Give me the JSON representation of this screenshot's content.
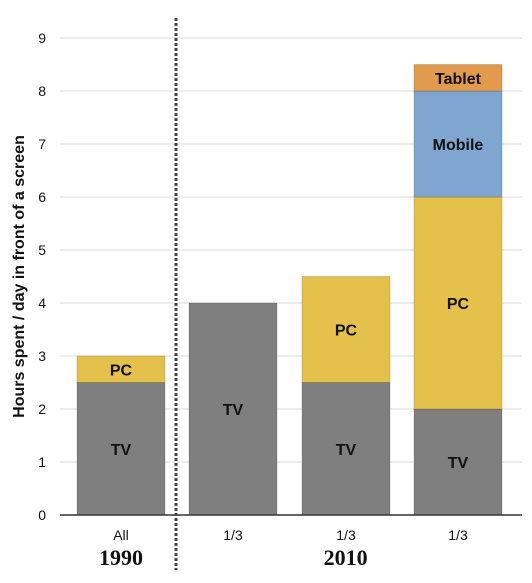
{
  "chart_data": {
    "type": "bar",
    "stacked": true,
    "ylabel": "Hours spent / day in front of a screen",
    "ylim": [
      0,
      9
    ],
    "yticks": [
      0,
      1,
      2,
      3,
      4,
      5,
      6,
      7,
      8,
      9
    ],
    "grid": true,
    "categories": [
      "All",
      "1/3",
      "1/3",
      "1/3"
    ],
    "groups": [
      {
        "label": "1990",
        "categories": [
          0
        ]
      },
      {
        "label": "2010",
        "categories": [
          1,
          2,
          3
        ]
      }
    ],
    "series": [
      {
        "name": "TV",
        "color": "#7f7f7f",
        "values": [
          2.5,
          4.0,
          2.5,
          2.0
        ]
      },
      {
        "name": "PC",
        "color": "#e3c14a",
        "values": [
          0.5,
          0,
          2.0,
          4.0
        ]
      },
      {
        "name": "Mobile",
        "color": "#7ea6d0",
        "values": [
          0,
          0,
          0,
          2.0
        ]
      },
      {
        "name": "Tablet",
        "color": "#e29a4c",
        "values": [
          0,
          0,
          0,
          0.5
        ]
      }
    ],
    "segment_labels": [
      [
        "TV",
        "PC",
        "",
        ""
      ],
      [
        "TV",
        "",
        "",
        ""
      ],
      [
        "TV",
        "PC",
        "",
        ""
      ],
      [
        "TV",
        "PC",
        "Mobile",
        "Tablet"
      ]
    ],
    "colors": {
      "grid": "#d9d9d9",
      "axis": "#333333",
      "divider": "#444444"
    }
  }
}
